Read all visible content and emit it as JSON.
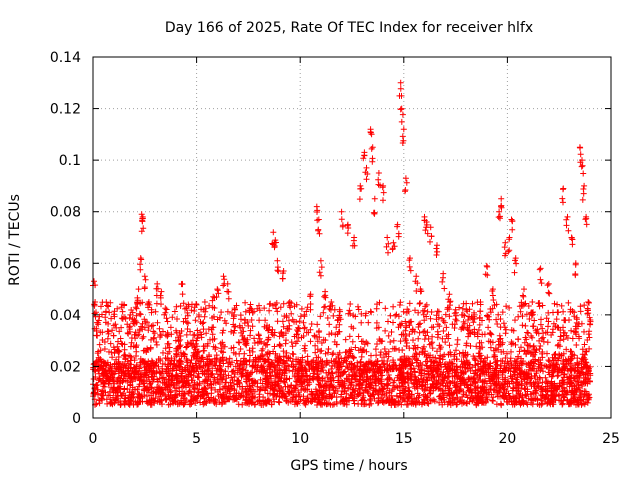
{
  "chart_data": {
    "type": "scatter",
    "title": "Day 166 of 2025, Rate Of TEC Index for receiver hlfx",
    "xlabel": "GPS time / hours",
    "ylabel": "ROTI / TECUs",
    "xlim": [
      0,
      25
    ],
    "ylim": [
      0,
      0.14
    ],
    "xticks": [
      0,
      5,
      10,
      15,
      20,
      25
    ],
    "xtick_labels": [
      "0",
      "5",
      "10",
      "15",
      "20",
      "25"
    ],
    "yticks": [
      0,
      0.02,
      0.04,
      0.06,
      0.08,
      0.1,
      0.12,
      0.14
    ],
    "ytick_labels": [
      "0",
      "0.02",
      "0.04",
      "0.06",
      "0.08",
      "0.1",
      "0.12",
      "0.14"
    ],
    "grid": true,
    "marker": "+",
    "color": "#ff0000",
    "series": [
      {
        "name": "ROTI",
        "points": [
          [
            0.05,
            0.053
          ],
          [
            0.1,
            0.045
          ],
          [
            0.2,
            0.037
          ],
          [
            0.3,
            0.022
          ],
          [
            0.5,
            0.02
          ],
          [
            0.8,
            0.018
          ],
          [
            1.0,
            0.032
          ],
          [
            1.2,
            0.026
          ],
          [
            1.5,
            0.044
          ],
          [
            1.8,
            0.04
          ],
          [
            2.0,
            0.038
          ],
          [
            2.2,
            0.05
          ],
          [
            2.3,
            0.062
          ],
          [
            2.35,
            0.079
          ],
          [
            2.4,
            0.078
          ],
          [
            2.5,
            0.055
          ],
          [
            2.7,
            0.045
          ],
          [
            2.9,
            0.036
          ],
          [
            3.1,
            0.052
          ],
          [
            3.3,
            0.049
          ],
          [
            3.6,
            0.033
          ],
          [
            4.0,
            0.03
          ],
          [
            4.3,
            0.052
          ],
          [
            4.6,
            0.044
          ],
          [
            5.0,
            0.03
          ],
          [
            5.4,
            0.045
          ],
          [
            5.8,
            0.047
          ],
          [
            6.0,
            0.05
          ],
          [
            6.3,
            0.055
          ],
          [
            6.5,
            0.052
          ],
          [
            6.8,
            0.04
          ],
          [
            7.2,
            0.035
          ],
          [
            7.6,
            0.044
          ],
          [
            8.0,
            0.032
          ],
          [
            8.4,
            0.036
          ],
          [
            8.7,
            0.072
          ],
          [
            8.8,
            0.069
          ],
          [
            8.9,
            0.061
          ],
          [
            9.2,
            0.057
          ],
          [
            9.5,
            0.045
          ],
          [
            9.9,
            0.035
          ],
          [
            10.2,
            0.04
          ],
          [
            10.5,
            0.048
          ],
          [
            10.8,
            0.082
          ],
          [
            10.9,
            0.077
          ],
          [
            11.0,
            0.061
          ],
          [
            11.2,
            0.049
          ],
          [
            11.5,
            0.045
          ],
          [
            11.9,
            0.042
          ],
          [
            12.0,
            0.08
          ],
          [
            12.3,
            0.075
          ],
          [
            12.6,
            0.07
          ],
          [
            12.9,
            0.09
          ],
          [
            13.1,
            0.103
          ],
          [
            13.2,
            0.097
          ],
          [
            13.4,
            0.112
          ],
          [
            13.5,
            0.105
          ],
          [
            13.6,
            0.085
          ],
          [
            13.8,
            0.095
          ],
          [
            14.0,
            0.09
          ],
          [
            14.2,
            0.07
          ],
          [
            14.5,
            0.068
          ],
          [
            14.7,
            0.075
          ],
          [
            14.85,
            0.13
          ],
          [
            14.9,
            0.12
          ],
          [
            15.0,
            0.112
          ],
          [
            15.1,
            0.093
          ],
          [
            15.3,
            0.062
          ],
          [
            15.6,
            0.055
          ],
          [
            15.8,
            0.05
          ],
          [
            16.0,
            0.078
          ],
          [
            16.1,
            0.076
          ],
          [
            16.3,
            0.074
          ],
          [
            16.6,
            0.067
          ],
          [
            16.9,
            0.056
          ],
          [
            17.2,
            0.048
          ],
          [
            17.5,
            0.042
          ],
          [
            17.8,
            0.04
          ],
          [
            18.1,
            0.038
          ],
          [
            18.4,
            0.04
          ],
          [
            18.7,
            0.045
          ],
          [
            19.0,
            0.059
          ],
          [
            19.3,
            0.05
          ],
          [
            19.6,
            0.08
          ],
          [
            19.7,
            0.085
          ],
          [
            19.9,
            0.068
          ],
          [
            20.1,
            0.07
          ],
          [
            20.2,
            0.077
          ],
          [
            20.4,
            0.062
          ],
          [
            20.8,
            0.05
          ],
          [
            21.2,
            0.045
          ],
          [
            21.6,
            0.058
          ],
          [
            22.0,
            0.052
          ],
          [
            22.4,
            0.044
          ],
          [
            22.7,
            0.089
          ],
          [
            22.9,
            0.078
          ],
          [
            23.1,
            0.07
          ],
          [
            23.3,
            0.06
          ],
          [
            23.5,
            0.105
          ],
          [
            23.6,
            0.1
          ],
          [
            23.7,
            0.09
          ],
          [
            23.8,
            0.078
          ],
          [
            23.9,
            0.045
          ],
          [
            24.0,
            0.038
          ]
        ],
        "noise_band": {
          "x_range": [
            0,
            24
          ],
          "dense_level_range": [
            0.005,
            0.022
          ],
          "sparse_level_range": [
            0.022,
            0.045
          ],
          "point_count": 4200
        }
      }
    ]
  }
}
